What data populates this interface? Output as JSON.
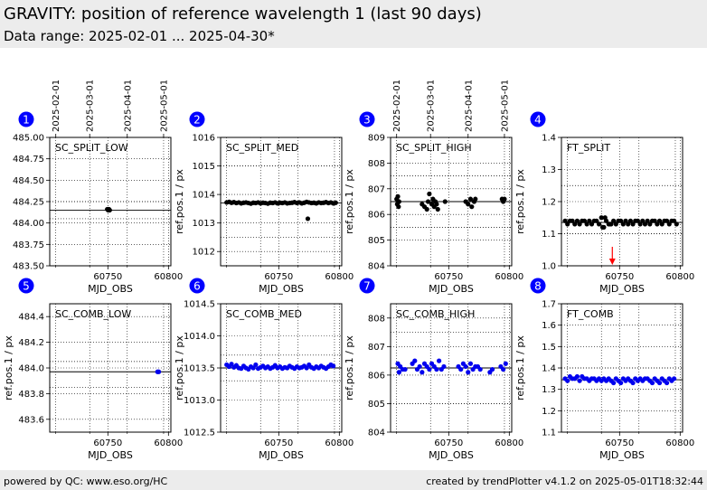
{
  "page": {
    "title": "GRAVITY: position of reference wavelength 1 (last 90 days)",
    "subtitle": "Data range: 2025-02-01 ... 2025-04-30*",
    "footer_left": "powered by QC: www.eso.org/HC",
    "footer_right": "created by trendPlotter v4.1.2 on 2025-05-01T18:32:44"
  },
  "colors": {
    "series_top": "#000000",
    "series_bottom": "#0000ee",
    "badge": "#0000ff",
    "alert": "#ff0000",
    "reference": "#000000"
  },
  "date_axis": {
    "ticks": [
      {
        "label": "2025-02-01",
        "mjd": 60707
      },
      {
        "label": "2025-03-01",
        "mjd": 60735
      },
      {
        "label": "2025-04-01",
        "mjd": 60766
      },
      {
        "label": "2025-05-01",
        "mjd": 60796
      }
    ]
  },
  "chart_data": [
    {
      "type": "scatter",
      "badge": "1",
      "label": "SC_SPLIT_LOW",
      "xlabel": "MJD_OBS",
      "ylabel": "",
      "xlim": [
        60702,
        60802
      ],
      "ylim": [
        483.5,
        485.0
      ],
      "xticks": [
        60750,
        60800
      ],
      "yticks": [
        483.5,
        483.75,
        484.0,
        484.25,
        484.5,
        484.75,
        485.0
      ],
      "ytick_labels": [
        "483.50",
        "483.75",
        "484.00",
        "484.25",
        "484.50",
        "484.75",
        "485.00"
      ],
      "reference": 484.15,
      "limits": [
        484.05,
        484.25
      ],
      "color": "#000000",
      "x": [
        60749.5,
        60750.2,
        60750.9,
        60751.5
      ],
      "y": [
        484.16,
        484.15,
        484.16,
        484.15
      ]
    },
    {
      "type": "scatter",
      "badge": "2",
      "label": "SC_SPLIT_MED",
      "xlabel": "MJD_OBS",
      "ylabel": "ref.pos.1 / px",
      "xlim": [
        60702,
        60802
      ],
      "ylim": [
        1011.5,
        1016.0
      ],
      "xticks": [
        60750,
        60800
      ],
      "yticks": [
        1012,
        1013,
        1014,
        1015,
        1016
      ],
      "ytick_labels": [
        "1012",
        "1013",
        "1014",
        "1015",
        "1016"
      ],
      "reference": 1013.7,
      "limits": [
        1012.5,
        1015.0
      ],
      "color": "#000000",
      "x": [
        60707,
        60709,
        60711,
        60713,
        60715,
        60717,
        60719,
        60721,
        60723,
        60725,
        60727,
        60729,
        60731,
        60733,
        60735,
        60737,
        60739,
        60741,
        60743,
        60745,
        60747,
        60749,
        60751,
        60753,
        60755,
        60757,
        60759,
        60761,
        60763,
        60765,
        60767,
        60769,
        60771,
        60773,
        60775,
        60777,
        60779,
        60781,
        60783,
        60785,
        60787,
        60789,
        60791,
        60793,
        60795,
        60797,
        60774
      ],
      "y": [
        1013.72,
        1013.74,
        1013.71,
        1013.73,
        1013.7,
        1013.72,
        1013.69,
        1013.71,
        1013.72,
        1013.7,
        1013.68,
        1013.71,
        1013.7,
        1013.72,
        1013.69,
        1013.71,
        1013.7,
        1013.68,
        1013.71,
        1013.7,
        1013.72,
        1013.69,
        1013.71,
        1013.7,
        1013.72,
        1013.69,
        1013.7,
        1013.71,
        1013.73,
        1013.7,
        1013.72,
        1013.69,
        1013.71,
        1013.74,
        1013.72,
        1013.7,
        1013.71,
        1013.69,
        1013.72,
        1013.7,
        1013.71,
        1013.73,
        1013.7,
        1013.72,
        1013.69,
        1013.71,
        1013.15
      ]
    },
    {
      "type": "scatter",
      "badge": "3",
      "label": "SC_SPLIT_HIGH",
      "xlabel": "MJD_OBS",
      "ylabel": "ref.pos.1 / px",
      "xlim": [
        60702,
        60802
      ],
      "ylim": [
        804,
        809
      ],
      "xticks": [
        60750,
        60800
      ],
      "yticks": [
        804,
        805,
        806,
        807,
        808,
        809
      ],
      "ytick_labels": [
        "804",
        "805",
        "806",
        "807",
        "808",
        "809"
      ],
      "reference": 806.5,
      "limits": [
        805.5,
        807.5
      ],
      "color": "#000000",
      "x": [
        60707,
        60707.5,
        60708,
        60708.6,
        60709,
        60728,
        60730,
        60732,
        60733,
        60734,
        60736,
        60737,
        60738,
        60739,
        60740,
        60741,
        60747,
        60764,
        60766,
        60768,
        60769,
        60771,
        60772,
        60794,
        60795,
        60796
      ],
      "y": [
        806.6,
        806.4,
        806.7,
        806.3,
        806.5,
        806.4,
        806.3,
        806.2,
        806.5,
        806.8,
        806.4,
        806.6,
        806.3,
        806.5,
        806.4,
        806.2,
        806.5,
        806.5,
        806.4,
        806.6,
        806.3,
        806.5,
        806.6,
        806.6,
        806.5,
        806.6
      ]
    },
    {
      "type": "scatter",
      "badge": "4",
      "label": "FT_SPLIT",
      "xlabel": "MJD_OBS",
      "ylabel": "ref.pos.1 / px",
      "xlim": [
        60702,
        60802
      ],
      "ylim": [
        1.0,
        1.4
      ],
      "xticks": [
        60750,
        60800
      ],
      "yticks": [
        1.0,
        1.1,
        1.2,
        1.3,
        1.4
      ],
      "ytick_labels": [
        "1.0",
        "1.1",
        "1.2",
        "1.3",
        "1.4"
      ],
      "reference": 1.135,
      "limits": [
        1.1,
        1.25
      ],
      "color": "#000000",
      "x": [
        60705,
        60707,
        60709,
        60711,
        60713,
        60715,
        60717,
        60719,
        60721,
        60723,
        60725,
        60727,
        60729,
        60731,
        60733,
        60735,
        60737,
        60739,
        60741,
        60743,
        60745,
        60747,
        60749,
        60751,
        60753,
        60755,
        60757,
        60759,
        60761,
        60763,
        60765,
        60767,
        60769,
        60771,
        60773,
        60775,
        60777,
        60779,
        60781,
        60783,
        60785,
        60787,
        60789,
        60791,
        60793,
        60795,
        60797,
        60736,
        60738,
        60742
      ],
      "y": [
        1.14,
        1.13,
        1.14,
        1.14,
        1.13,
        1.14,
        1.13,
        1.14,
        1.14,
        1.13,
        1.14,
        1.13,
        1.14,
        1.14,
        1.13,
        1.15,
        1.12,
        1.14,
        1.13,
        1.13,
        1.14,
        1.13,
        1.14,
        1.14,
        1.13,
        1.14,
        1.13,
        1.14,
        1.13,
        1.14,
        1.14,
        1.13,
        1.14,
        1.13,
        1.14,
        1.13,
        1.14,
        1.14,
        1.13,
        1.14,
        1.13,
        1.14,
        1.14,
        1.13,
        1.14,
        1.14,
        1.13,
        1.12,
        1.15,
        1.13
      ],
      "outlier_arrow_x": 60744
    },
    {
      "type": "scatter",
      "badge": "5",
      "label": "SC_COMB_LOW",
      "xlabel": "MJD_OBS",
      "ylabel": "ref.pos.1 / px",
      "xlim": [
        60702,
        60802
      ],
      "ylim": [
        483.5,
        484.5
      ],
      "xticks": [
        60750,
        60800
      ],
      "yticks": [
        483.6,
        483.8,
        484.0,
        484.2,
        484.4
      ],
      "ytick_labels": [
        "483.6",
        "483.8",
        "484.0",
        "484.2",
        "484.4"
      ],
      "reference": 483.97,
      "limits": [
        483.85,
        484.05
      ],
      "color": "#0000ee",
      "x": [
        60791,
        60792
      ],
      "y": [
        483.97,
        483.97
      ]
    },
    {
      "type": "scatter",
      "badge": "6",
      "label": "SC_COMB_MED",
      "xlabel": "MJD_OBS",
      "ylabel": "ref.pos.1 / px",
      "xlim": [
        60702,
        60802
      ],
      "ylim": [
        1012.5,
        1014.5
      ],
      "xticks": [
        60750,
        60800
      ],
      "yticks": [
        1012.5,
        1013.0,
        1013.5,
        1014.0,
        1014.5
      ],
      "ytick_labels": [
        "1012.5",
        "1013.0",
        "1013.5",
        "1014.0",
        "1014.5"
      ],
      "reference": 1013.5,
      "limits": [
        1013.3,
        1013.7
      ],
      "color": "#0000ee",
      "x": [
        60707,
        60709,
        60711,
        60713,
        60715,
        60717,
        60719,
        60721,
        60723,
        60725,
        60727,
        60729,
        60731,
        60733,
        60735,
        60737,
        60739,
        60741,
        60743,
        60745,
        60747,
        60749,
        60751,
        60753,
        60755,
        60757,
        60759,
        60761,
        60763,
        60765,
        60767,
        60769,
        60771,
        60773,
        60775,
        60777,
        60779,
        60781,
        60783,
        60785,
        60787,
        60789,
        60791,
        60793,
        60795
      ],
      "y": [
        1013.55,
        1013.52,
        1013.56,
        1013.51,
        1013.54,
        1013.5,
        1013.49,
        1013.53,
        1013.5,
        1013.48,
        1013.52,
        1013.5,
        1013.55,
        1013.49,
        1013.51,
        1013.53,
        1013.5,
        1013.52,
        1013.49,
        1013.51,
        1013.54,
        1013.5,
        1013.52,
        1013.49,
        1013.51,
        1013.5,
        1013.53,
        1013.51,
        1013.49,
        1013.52,
        1013.5,
        1013.51,
        1013.53,
        1013.5,
        1013.55,
        1013.51,
        1013.49,
        1013.52,
        1013.5,
        1013.53,
        1013.51,
        1013.49,
        1013.52,
        1013.55,
        1013.53
      ]
    },
    {
      "type": "scatter",
      "badge": "7",
      "label": "SC_COMB_HIGH",
      "xlabel": "MJD_OBS",
      "ylabel": "ref.pos.1 / px",
      "xlim": [
        60702,
        60802
      ],
      "ylim": [
        804,
        808.5
      ],
      "xticks": [
        60750,
        60800
      ],
      "yticks": [
        804,
        805,
        806,
        807,
        808
      ],
      "ytick_labels": [
        "804",
        "805",
        "806",
        "807",
        "808"
      ],
      "reference": 806.25,
      "limits": [
        805.0,
        807.5
      ],
      "color": "#0000ee",
      "x": [
        60708,
        60709,
        60710,
        60712,
        60714,
        60720,
        60722,
        60724,
        60726,
        60728,
        60730,
        60732,
        60734,
        60736,
        60738,
        60740,
        60742,
        60744,
        60746,
        60758,
        60760,
        60762,
        60764,
        60766,
        60768,
        60770,
        60772,
        60774,
        60776,
        60784,
        60786,
        60793,
        60795,
        60797
      ],
      "y": [
        806.4,
        806.1,
        806.3,
        806.2,
        806.2,
        806.4,
        806.5,
        806.2,
        806.3,
        806.1,
        806.4,
        806.3,
        806.2,
        806.4,
        806.3,
        806.2,
        806.5,
        806.2,
        806.3,
        806.3,
        806.2,
        806.4,
        806.3,
        806.1,
        806.4,
        806.2,
        806.3,
        806.3,
        806.2,
        806.1,
        806.2,
        806.3,
        806.2,
        806.4
      ]
    },
    {
      "type": "scatter",
      "badge": "8",
      "label": "FT_COMB",
      "xlabel": "MJD_OBS",
      "ylabel": "ref.pos.1 / px",
      "xlim": [
        60702,
        60802
      ],
      "ylim": [
        1.1,
        1.7
      ],
      "xticks": [
        60750,
        60800
      ],
      "yticks": [
        1.1,
        1.2,
        1.3,
        1.4,
        1.5,
        1.6,
        1.7
      ],
      "ytick_labels": [
        "1.1",
        "1.2",
        "1.3",
        "1.4",
        "1.5",
        "1.6",
        "1.7"
      ],
      "reference": 1.345,
      "limits": [
        1.3,
        1.4
      ],
      "color": "#0000ee",
      "x": [
        60705,
        60707,
        60709,
        60711,
        60713,
        60715,
        60717,
        60719,
        60721,
        60723,
        60725,
        60727,
        60729,
        60731,
        60733,
        60735,
        60737,
        60739,
        60741,
        60743,
        60745,
        60747,
        60749,
        60751,
        60753,
        60755,
        60757,
        60759,
        60761,
        60763,
        60765,
        60767,
        60769,
        60771,
        60773,
        60775,
        60777,
        60779,
        60781,
        60783,
        60785,
        60787,
        60789,
        60791,
        60793,
        60795
      ],
      "y": [
        1.35,
        1.34,
        1.36,
        1.35,
        1.35,
        1.36,
        1.34,
        1.36,
        1.35,
        1.35,
        1.34,
        1.35,
        1.35,
        1.34,
        1.35,
        1.34,
        1.35,
        1.34,
        1.35,
        1.34,
        1.33,
        1.35,
        1.34,
        1.33,
        1.35,
        1.34,
        1.35,
        1.34,
        1.33,
        1.35,
        1.34,
        1.35,
        1.34,
        1.35,
        1.35,
        1.34,
        1.33,
        1.35,
        1.34,
        1.33,
        1.35,
        1.34,
        1.33,
        1.35,
        1.34,
        1.35
      ]
    }
  ]
}
